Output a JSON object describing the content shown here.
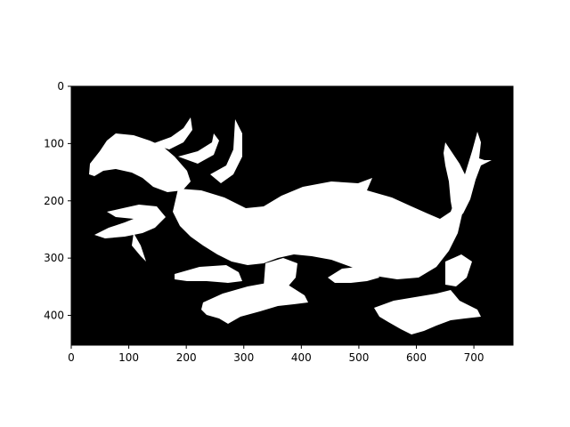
{
  "chart_data": {
    "type": "image",
    "title": "",
    "xlabel": "",
    "ylabel": "",
    "xlim": [
      0,
      768
    ],
    "ylim": [
      452,
      0
    ],
    "y_axis_inverted": true,
    "grid": false,
    "legend": "none",
    "x_ticks": [
      0,
      100,
      200,
      300,
      400,
      500,
      600,
      700
    ],
    "y_ticks": [
      0,
      100,
      200,
      300,
      400
    ],
    "x_tick_labels": [
      "0",
      "100",
      "200",
      "300",
      "400",
      "500",
      "600",
      "700"
    ],
    "y_tick_labels": [
      "0",
      "100",
      "200",
      "300",
      "400"
    ],
    "image_content": "binary thresholded photo of a dragon statue",
    "colors": {
      "background": "#000000",
      "foreground": "#ffffff",
      "axes": "#000000"
    }
  }
}
